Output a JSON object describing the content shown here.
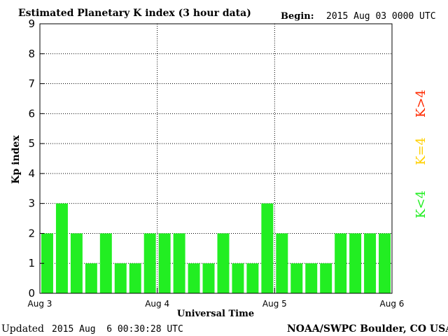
{
  "header": {
    "title": "Estimated Planetary K index (3 hour data)",
    "begin_label": "Begin:",
    "begin_value": "2015 Aug 03 0000 UTC"
  },
  "footer": {
    "updated_label": "Updated",
    "updated_value": "2015 Aug  6 00:30:28 UTC",
    "credit": "NOAA/SWPC Boulder, CO USA"
  },
  "legend": {
    "high": {
      "label": "K>4",
      "color": "#ff2a00"
    },
    "equal": {
      "label": "K=4",
      "color": "#ffd000"
    },
    "low": {
      "label": "K<4",
      "color": "#22ee22"
    }
  },
  "chart_data": {
    "type": "bar",
    "title": "Estimated Planetary K index (3 hour data)",
    "xlabel": "Universal Time",
    "ylabel": "Kp index",
    "ylim": [
      0,
      9
    ],
    "yticks": [
      0,
      1,
      2,
      3,
      4,
      5,
      6,
      7,
      8,
      9
    ],
    "xtick_labels": [
      "Aug 3",
      "Aug 4",
      "Aug 5",
      "Aug 6"
    ],
    "grid": true,
    "bar_color": "#22ee22",
    "values": [
      2,
      3,
      2,
      1,
      2,
      1,
      1,
      2,
      2,
      2,
      1,
      1,
      2,
      1,
      1,
      3,
      2,
      1,
      1,
      1,
      2,
      2,
      2,
      2
    ]
  }
}
